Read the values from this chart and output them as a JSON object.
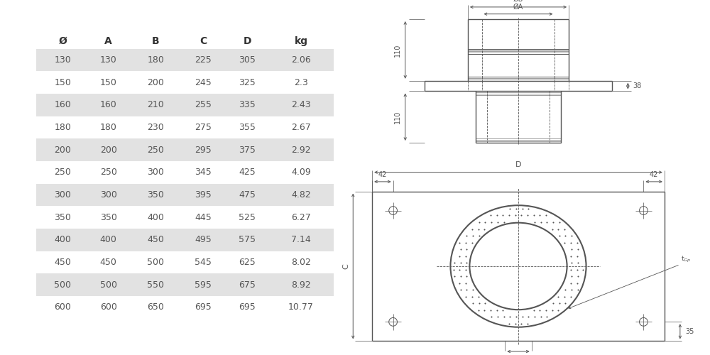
{
  "table_headers": [
    "Ø",
    "A",
    "B",
    "C",
    "D",
    "kg"
  ],
  "table_data": [
    [
      "130",
      "130",
      "180",
      "225",
      "305",
      "2.06"
    ],
    [
      "150",
      "150",
      "200",
      "245",
      "325",
      "2.3"
    ],
    [
      "160",
      "160",
      "210",
      "255",
      "335",
      "2.43"
    ],
    [
      "180",
      "180",
      "230",
      "275",
      "355",
      "2.67"
    ],
    [
      "200",
      "200",
      "250",
      "295",
      "375",
      "2.92"
    ],
    [
      "250",
      "250",
      "300",
      "345",
      "425",
      "4.09"
    ],
    [
      "300",
      "300",
      "350",
      "395",
      "475",
      "4.82"
    ],
    [
      "350",
      "350",
      "400",
      "445",
      "525",
      "6.27"
    ],
    [
      "400",
      "400",
      "450",
      "495",
      "575",
      "7.14"
    ],
    [
      "450",
      "450",
      "500",
      "545",
      "625",
      "8.02"
    ],
    [
      "500",
      "500",
      "550",
      "595",
      "675",
      "8.92"
    ],
    [
      "600",
      "600",
      "650",
      "695",
      "695",
      "10.77"
    ]
  ],
  "shaded_rows": [
    0,
    2,
    4,
    6,
    8,
    10
  ],
  "row_shade_color": "#e2e2e2",
  "text_color": "#555555",
  "header_color": "#333333",
  "line_color": "#555555",
  "dim_color": "#555555"
}
